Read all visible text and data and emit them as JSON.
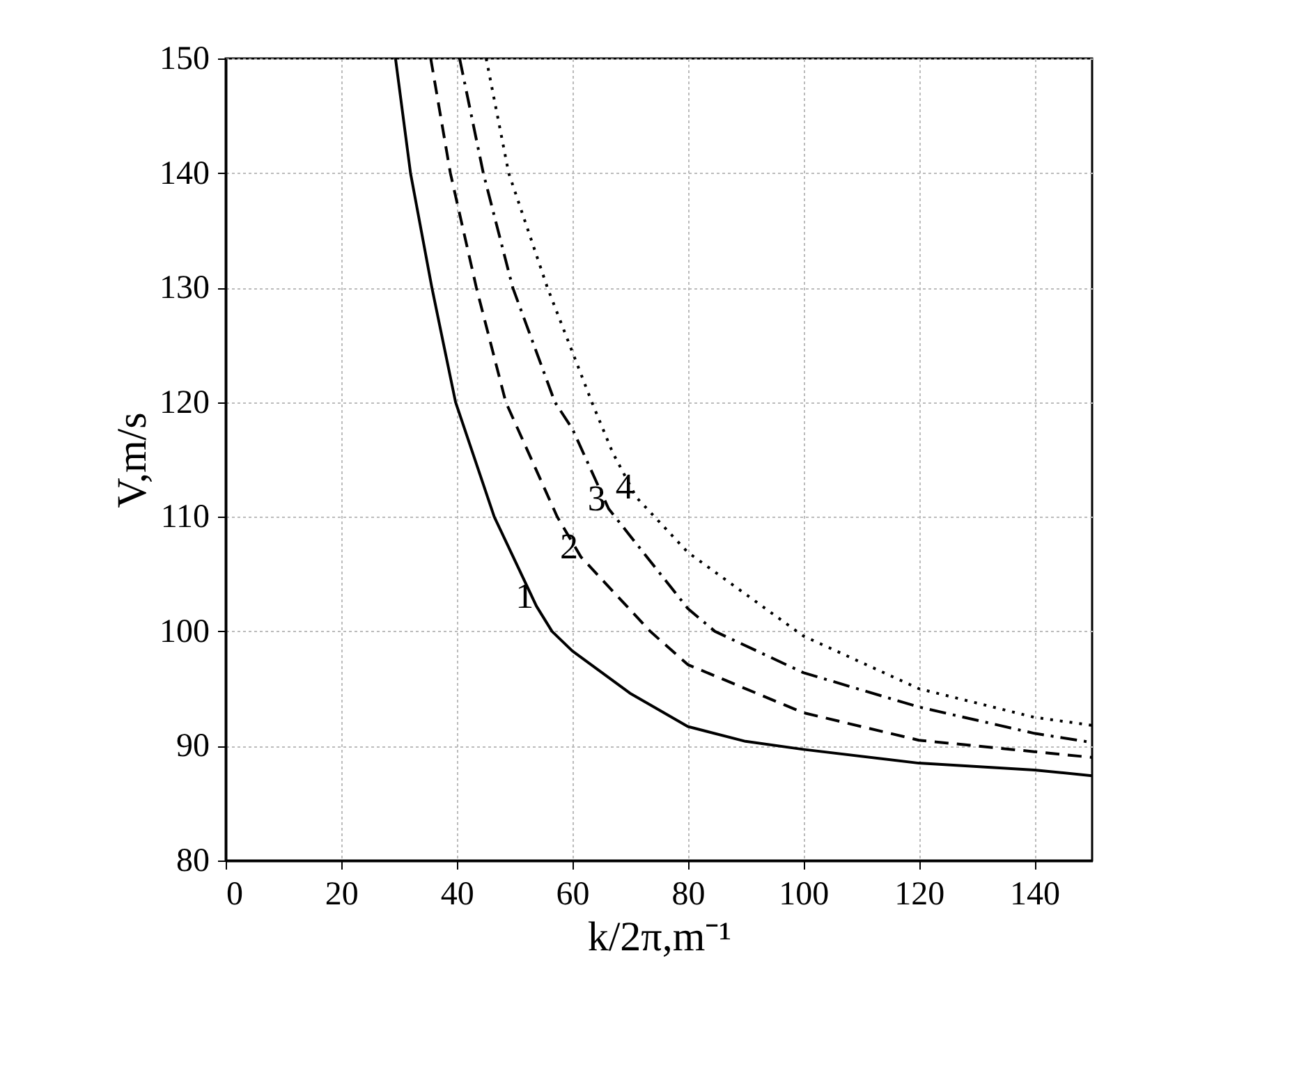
{
  "chart_data": {
    "type": "line",
    "xlabel": "k/2π,m⁻¹",
    "ylabel": "V,m/s",
    "xlim": [
      0,
      150
    ],
    "xticks": [
      0,
      20,
      40,
      60,
      80,
      100,
      120,
      140
    ],
    "ylim": [
      80,
      150
    ],
    "yticks": [
      80,
      90,
      100,
      110,
      120,
      130,
      140,
      150
    ],
    "grid": true,
    "marker": "none",
    "legend": false,
    "series": [
      {
        "name": "1",
        "color": "#000000",
        "line_style": "solid",
        "x": [
          29.4,
          32,
          35.7,
          39.8,
          46.5,
          53.8,
          56.5,
          60,
          70,
          80,
          90,
          100,
          120,
          140,
          150
        ],
        "values": [
          150,
          140,
          130,
          120,
          110,
          102.2,
          100,
          98.3,
          94.6,
          91.7,
          90.4,
          89.7,
          88.5,
          87.9,
          87.4
        ]
      },
      {
        "name": "2",
        "color": "#000000",
        "line_style": "dashed",
        "x": [
          35.5,
          38.9,
          43.4,
          48.5,
          57.4,
          61.5,
          73.5,
          80,
          100,
          120,
          140,
          150
        ],
        "values": [
          150,
          140,
          130,
          120,
          110,
          106.5,
          100,
          97.1,
          92.9,
          90.5,
          89.5,
          89.0
        ]
      },
      {
        "name": "3",
        "color": "#000000",
        "line_style": "dashdot",
        "x": [
          40.5,
          44.6,
          49.7,
          57,
          60,
          66.3,
          80,
          84.7,
          100,
          120,
          140,
          150
        ],
        "values": [
          150,
          140,
          130,
          120,
          117.7,
          110.7,
          102.0,
          100,
          96.4,
          93.4,
          91.1,
          90.3
        ]
      },
      {
        "name": "4",
        "color": "#000000",
        "line_style": "dotted",
        "x": [
          45.1,
          49,
          55.7,
          63.4,
          67,
          71.1,
          80,
          100,
          120,
          140,
          150
        ],
        "values": [
          150,
          140,
          130,
          120,
          115.6,
          111.7,
          106.9,
          99.6,
          95.0,
          92.5,
          91.8
        ]
      }
    ]
  }
}
